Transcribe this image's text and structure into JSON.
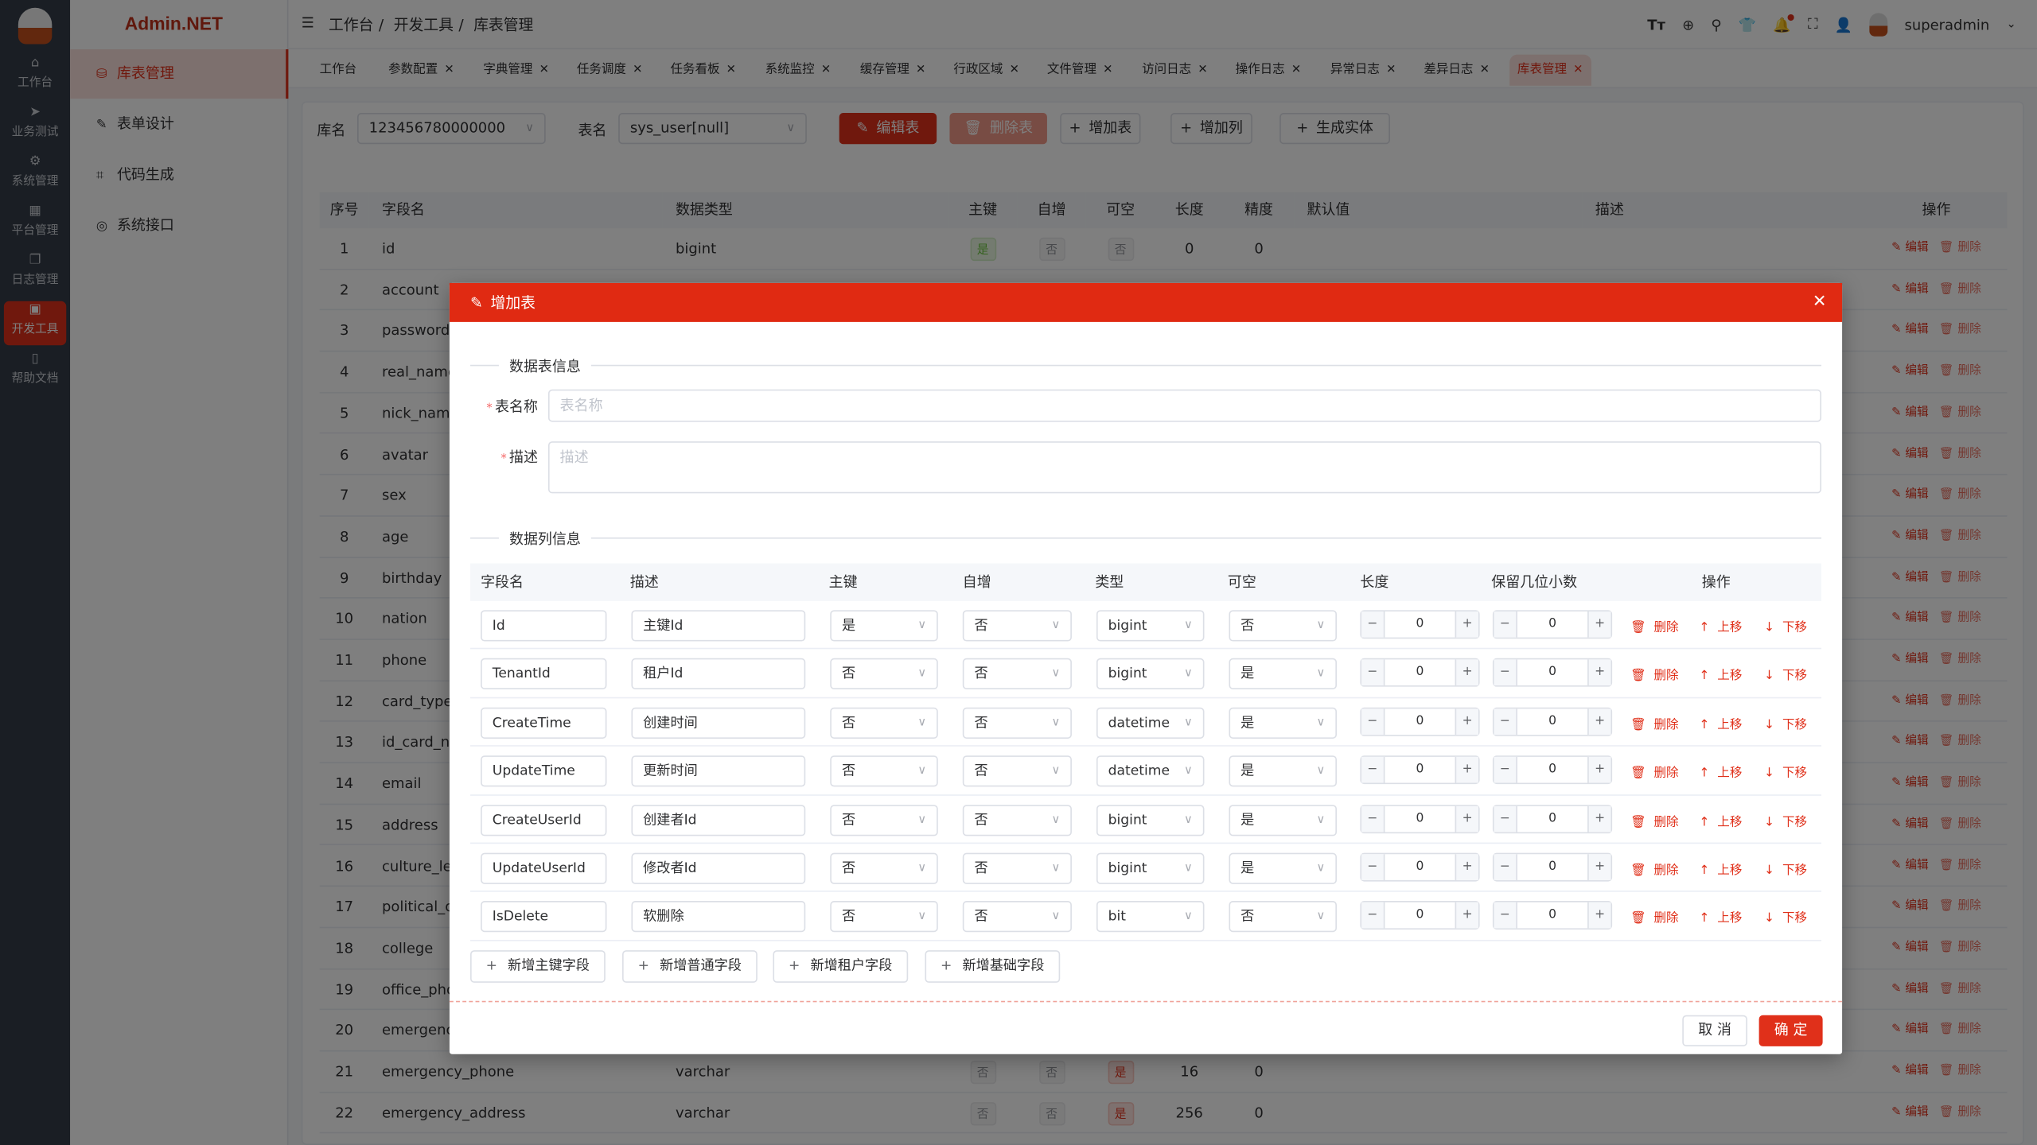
{
  "rail": {
    "items": [
      {
        "label": "工作台",
        "icon": "home-icon"
      },
      {
        "label": "业务测试",
        "icon": "send-icon"
      },
      {
        "label": "系统管理",
        "icon": "gear-icon"
      },
      {
        "label": "平台管理",
        "icon": "grid-icon"
      },
      {
        "label": "日志管理",
        "icon": "copy-icon"
      },
      {
        "label": "开发工具",
        "icon": "cpu-icon",
        "active": true
      },
      {
        "label": "帮助文档",
        "icon": "notebook-icon"
      }
    ]
  },
  "brand": "Admin.NET",
  "menu": {
    "items": [
      {
        "label": "库表管理",
        "icon": "database-icon",
        "active": true
      },
      {
        "label": "表单设计",
        "icon": "edit-icon"
      },
      {
        "label": "代码生成",
        "icon": "crop-icon"
      },
      {
        "label": "系统接口",
        "icon": "lifebuoy-icon"
      }
    ]
  },
  "breadcrumb": [
    "工作台",
    "开发工具",
    "库表管理"
  ],
  "user": {
    "name": "superadmin"
  },
  "tabs": [
    {
      "label": "工作台",
      "closable": false
    },
    {
      "label": "参数配置",
      "closable": true
    },
    {
      "label": "字典管理",
      "closable": true
    },
    {
      "label": "任务调度",
      "closable": true
    },
    {
      "label": "任务看板",
      "closable": true
    },
    {
      "label": "系统监控",
      "closable": true
    },
    {
      "label": "缓存管理",
      "closable": true
    },
    {
      "label": "行政区域",
      "closable": true
    },
    {
      "label": "文件管理",
      "closable": true
    },
    {
      "label": "访问日志",
      "closable": true
    },
    {
      "label": "操作日志",
      "closable": true
    },
    {
      "label": "异常日志",
      "closable": true
    },
    {
      "label": "差异日志",
      "closable": true
    },
    {
      "label": "库表管理",
      "closable": true,
      "active": true
    }
  ],
  "toolbar": {
    "db_label": "库名",
    "db_value": "123456780000000",
    "table_label": "表名",
    "table_value": "sys_user[null]",
    "edit_table": "编辑表",
    "delete_table": "删除表",
    "add_table": "增加表",
    "add_column": "增加列",
    "gen_entity": "生成实体"
  },
  "bg_table": {
    "headers": [
      "序号",
      "字段名",
      "数据类型",
      "主键",
      "自增",
      "可空",
      "长度",
      "精度",
      "默认值",
      "描述",
      "操作"
    ],
    "edit_label": "编辑",
    "delete_label": "删除",
    "rows": [
      {
        "no": "1",
        "name": "id",
        "type": "bigint",
        "pk": "是",
        "ai": "否",
        "nullable": "否",
        "len": "0",
        "prec": "0"
      },
      {
        "no": "2",
        "name": "account"
      },
      {
        "no": "3",
        "name": "password"
      },
      {
        "no": "4",
        "name": "real_name"
      },
      {
        "no": "5",
        "name": "nick_name"
      },
      {
        "no": "6",
        "name": "avatar"
      },
      {
        "no": "7",
        "name": "sex"
      },
      {
        "no": "8",
        "name": "age"
      },
      {
        "no": "9",
        "name": "birthday"
      },
      {
        "no": "10",
        "name": "nation"
      },
      {
        "no": "11",
        "name": "phone"
      },
      {
        "no": "12",
        "name": "card_type"
      },
      {
        "no": "13",
        "name": "id_card_nu"
      },
      {
        "no": "14",
        "name": "email"
      },
      {
        "no": "15",
        "name": "address"
      },
      {
        "no": "16",
        "name": "culture_lev"
      },
      {
        "no": "17",
        "name": "political_ou"
      },
      {
        "no": "18",
        "name": "college"
      },
      {
        "no": "19",
        "name": "office_pho"
      },
      {
        "no": "20",
        "name": "emergency"
      },
      {
        "no": "21",
        "name": "emergency_phone",
        "type": "varchar",
        "pk": "否",
        "ai": "否",
        "nullable": "是",
        "len": "16",
        "prec": "0"
      },
      {
        "no": "22",
        "name": "emergency_address",
        "type": "varchar",
        "pk": "否",
        "ai": "否",
        "nullable": "是",
        "len": "256",
        "prec": "0"
      }
    ]
  },
  "modal": {
    "title": "增加表",
    "section_table": "数据表信息",
    "name_label": "表名称",
    "name_placeholder": "表名称",
    "name_value": "",
    "desc_label": "描述",
    "desc_placeholder": "描述",
    "desc_value": "",
    "section_columns": "数据列信息",
    "col_headers": [
      "字段名",
      "描述",
      "主键",
      "自增",
      "类型",
      "可空",
      "长度",
      "保留几位小数",
      "操作"
    ],
    "op_delete": "删除",
    "op_up": "上移",
    "op_down": "下移",
    "columns": [
      {
        "name": "Id",
        "desc": "主键Id",
        "pk": "是",
        "ai": "否",
        "type": "bigint",
        "nullable": "否",
        "len": "0",
        "dec": "0"
      },
      {
        "name": "TenantId",
        "desc": "租户Id",
        "pk": "否",
        "ai": "否",
        "type": "bigint",
        "nullable": "是",
        "len": "0",
        "dec": "0"
      },
      {
        "name": "CreateTime",
        "desc": "创建时间",
        "pk": "否",
        "ai": "否",
        "type": "datetime",
        "nullable": "是",
        "len": "0",
        "dec": "0"
      },
      {
        "name": "UpdateTime",
        "desc": "更新时间",
        "pk": "否",
        "ai": "否",
        "type": "datetime",
        "nullable": "是",
        "len": "0",
        "dec": "0"
      },
      {
        "name": "CreateUserId",
        "desc": "创建者Id",
        "pk": "否",
        "ai": "否",
        "type": "bigint",
        "nullable": "是",
        "len": "0",
        "dec": "0"
      },
      {
        "name": "UpdateUserId",
        "desc": "修改者Id",
        "pk": "否",
        "ai": "否",
        "type": "bigint",
        "nullable": "是",
        "len": "0",
        "dec": "0"
      },
      {
        "name": "IsDelete",
        "desc": "软删除",
        "pk": "否",
        "ai": "否",
        "type": "bit",
        "nullable": "否",
        "len": "0",
        "dec": "0"
      }
    ],
    "add_buttons": [
      "新增主键字段",
      "新增普通字段",
      "新增租户字段",
      "新增基础字段"
    ],
    "cancel": "取 消",
    "confirm": "确 定"
  },
  "colors": {
    "accent": "#e02a12",
    "success": "#67c23a"
  }
}
